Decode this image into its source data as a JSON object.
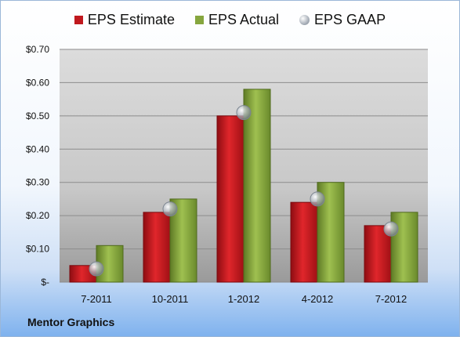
{
  "brand": "Mentor Graphics",
  "colors": {
    "estimate": "#c0181e",
    "actual": "#86a63e",
    "gaap": "#b9bfc7"
  },
  "chart_data": {
    "type": "bar",
    "categories": [
      "7-2011",
      "10-2011",
      "1-2012",
      "4-2012",
      "7-2012"
    ],
    "series": [
      {
        "name": "EPS Estimate",
        "values": [
          0.05,
          0.21,
          0.5,
          0.24,
          0.17
        ]
      },
      {
        "name": "EPS Actual",
        "values": [
          0.11,
          0.25,
          0.58,
          0.3,
          0.21
        ]
      },
      {
        "name": "EPS GAAP",
        "values": [
          0.04,
          0.22,
          0.51,
          0.25,
          0.16
        ]
      }
    ],
    "yticks": [
      "$-",
      "$0.10",
      "$0.20",
      "$0.30",
      "$0.40",
      "$0.50",
      "$0.60",
      "$0.70"
    ],
    "ylim": [
      0,
      0.7
    ],
    "legend_position": "top",
    "grid": true
  }
}
